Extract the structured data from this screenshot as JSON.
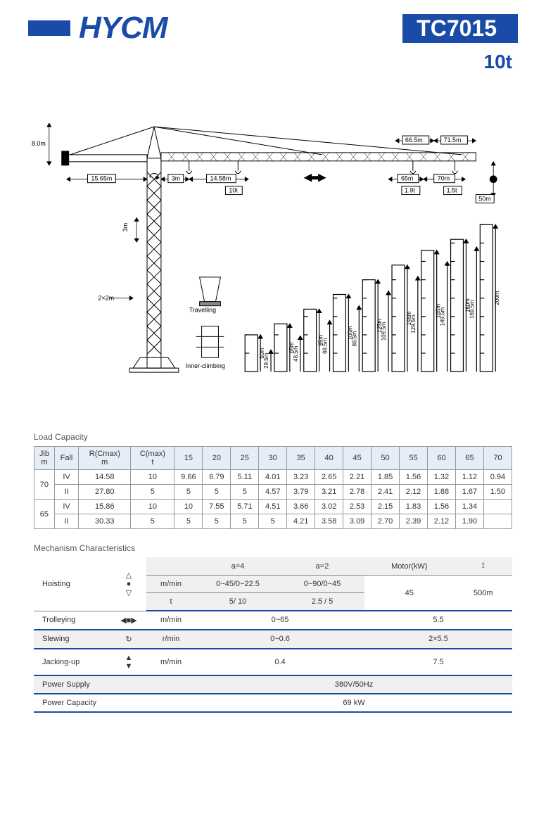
{
  "header": {
    "brand": "HYCM",
    "model": "TC7015",
    "capacity": "10t"
  },
  "diagram": {
    "top_height": "8.0m",
    "counter_jib": "15.65m",
    "jib_starts": [
      "3m",
      "14.58m"
    ],
    "max_load": "10t",
    "tip_radii_top": [
      "66.5m",
      "71.5m"
    ],
    "tip_radii": [
      "65m",
      "70m"
    ],
    "tip_loads": [
      "1.9t",
      "1.5t"
    ],
    "hook_height": "50m",
    "mast_section": "3m",
    "base": "2×2m",
    "travelling": "Travelling",
    "inner_climbing": "Inner-climbing",
    "heights": {
      "free": [
        "50m",
        "65m",
        "85m",
        "105m",
        "125m",
        "145m",
        "165m",
        "180m",
        "200m"
      ],
      "anchor": [
        "29.5m",
        "48.5m",
        "69.5m",
        "89.5m",
        "109.5m",
        "129.5m",
        "149.5m",
        "169.5m"
      ]
    }
  },
  "load_capacity": {
    "title": "Load Capacity",
    "headers": [
      "Jib\nm",
      "Fall",
      "R(Cmax)\nm",
      "C(max)\nt",
      "15",
      "20",
      "25",
      "30",
      "35",
      "40",
      "45",
      "50",
      "55",
      "60",
      "65",
      "70"
    ],
    "jib70": {
      "label": "70",
      "rowIV": [
        "IV",
        "14.58",
        "10",
        "9.66",
        "6.79",
        "5.11",
        "4.01",
        "3.23",
        "2.65",
        "2.21",
        "1.85",
        "1.56",
        "1.32",
        "1.12",
        "0.94"
      ],
      "rowII": [
        "II",
        "27.80",
        "5",
        "5",
        "5",
        "5",
        "4.57",
        "3.79",
        "3.21",
        "2.78",
        "2.41",
        "2.12",
        "1.88",
        "1.67",
        "1.50"
      ]
    },
    "jib65": {
      "label": "65",
      "rowIV": [
        "IV",
        "15.86",
        "10",
        "10",
        "7.55",
        "5.71",
        "4.51",
        "3.66",
        "3.02",
        "2.53",
        "2.15",
        "1.83",
        "1.56",
        "1.34",
        ""
      ],
      "rowII": [
        "II",
        "30.33",
        "5",
        "5",
        "5",
        "5",
        "5",
        "4.21",
        "3.58",
        "3.09",
        "2.70",
        "2.39",
        "2.12",
        "1.90",
        ""
      ]
    }
  },
  "mechanism": {
    "title": "Mechanism  Characteristics",
    "hoisting": {
      "label": "Hoisting",
      "a4": "a=4",
      "a2": "a=2",
      "motor_h": "Motor(kW)",
      "unit1": "m/min",
      "v4": "0~45/0~22.5",
      "v2": "0~90/0~45",
      "unit2": "t",
      "t4": "5/ 10",
      "t2": "2.5 / 5",
      "motor": "45",
      "rope": "500m"
    },
    "trolleying": {
      "label": "Trolleying",
      "unit": "m/min",
      "val": "0~65",
      "motor": "5.5"
    },
    "slewing": {
      "label": "Slewing",
      "unit": "r/min",
      "val": "0~0.6",
      "motor": "2×5.5"
    },
    "jacking": {
      "label": "Jacking-up",
      "unit": "m/min",
      "val": "0.4",
      "motor": "7.5"
    },
    "power_supply": {
      "label": "Power Supply",
      "val": "380V/50Hz"
    },
    "power_capacity": {
      "label": "Power Capacity",
      "val": "69 kW"
    }
  },
  "colors": {
    "brand": "#1a4ba8",
    "header_bg": "#e6edf7",
    "grid": "#999",
    "mech_line": "#1a4ba8"
  }
}
